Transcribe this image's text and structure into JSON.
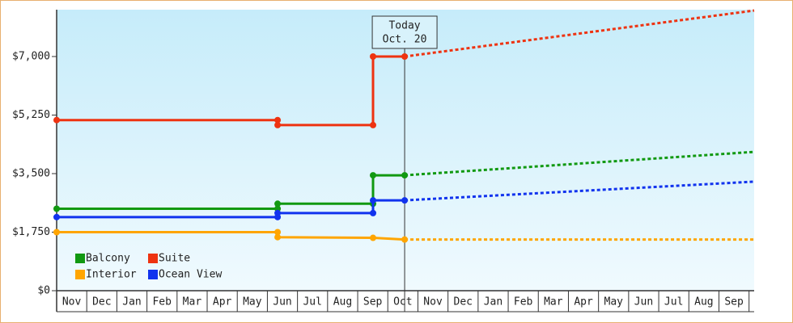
{
  "chart_data": {
    "type": "step-line",
    "categories": [
      "Nov",
      "Dec",
      "Jan",
      "Feb",
      "Mar",
      "Apr",
      "May",
      "Jun",
      "Jul",
      "Aug",
      "Sep",
      "Oct",
      "Nov",
      "Dec",
      "Jan",
      "Feb",
      "Mar",
      "Apr",
      "May",
      "Jun",
      "Jul",
      "Aug",
      "Sep"
    ],
    "xlim": [
      0,
      23.17
    ],
    "ylim": [
      0,
      8400
    ],
    "yticks": [
      {
        "value": 0,
        "label": "$0"
      },
      {
        "value": 1750,
        "label": "$1,750"
      },
      {
        "value": 3500,
        "label": "$3,500"
      },
      {
        "value": 5250,
        "label": "$5,250"
      },
      {
        "value": 7000,
        "label": "$7,000"
      }
    ],
    "legend": "lower left",
    "today": {
      "x": 11.56,
      "label": [
        "Today",
        "Oct. 20"
      ]
    },
    "series": [
      {
        "name": "Balcony",
        "color": "#119911",
        "x": [
          0,
          7.34,
          7.34,
          10.51,
          10.51,
          11.56
        ],
        "values": [
          2450,
          2450,
          2600,
          2600,
          3450,
          3450
        ],
        "forecast": {
          "x": [
            11.56,
            23.17
          ],
          "values": [
            3450,
            4150
          ]
        }
      },
      {
        "name": "Suite",
        "color": "#ee3311",
        "x": [
          0,
          7.34,
          7.34,
          10.51,
          10.51,
          11.56
        ],
        "values": [
          5100,
          5100,
          4950,
          4950,
          7000,
          7000
        ],
        "forecast": {
          "x": [
            11.56,
            23.17
          ],
          "values": [
            7000,
            8375
          ]
        }
      },
      {
        "name": "Interior",
        "color": "#ffa500",
        "x": [
          0,
          7.34,
          7.34,
          10.51,
          11.56
        ],
        "values": [
          1750,
          1750,
          1600,
          1580,
          1530
        ],
        "forecast": {
          "x": [
            11.56,
            23.17
          ],
          "values": [
            1530,
            1530
          ]
        }
      },
      {
        "name": "Ocean View",
        "color": "#1133ee",
        "x": [
          0,
          7.34,
          7.34,
          10.51,
          10.51,
          11.56
        ],
        "values": [
          2200,
          2200,
          2320,
          2320,
          2700,
          2700
        ],
        "forecast": {
          "x": [
            11.56,
            23.17
          ],
          "values": [
            2700,
            3260
          ]
        }
      }
    ]
  }
}
